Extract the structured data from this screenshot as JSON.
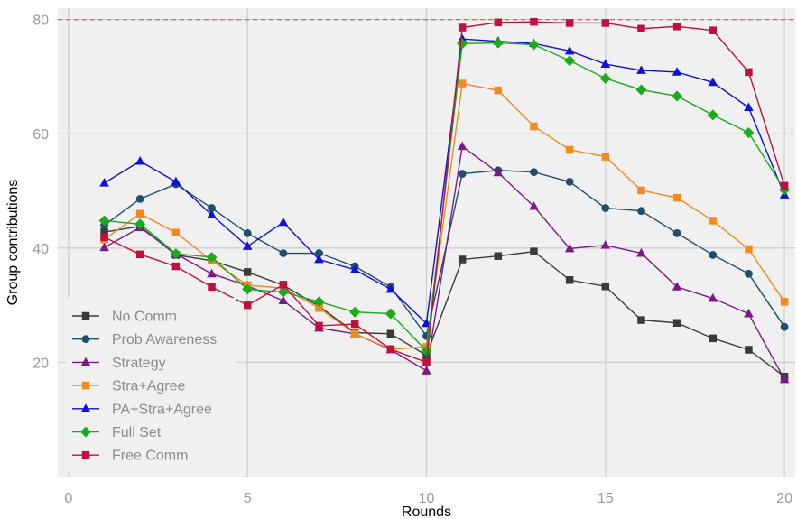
{
  "chart_data": {
    "type": "line",
    "title": "",
    "xlabel": "Rounds",
    "ylabel": "Group contributions",
    "xlim": [
      -0.3,
      20.3
    ],
    "ylim": [
      0,
      82
    ],
    "xticks": [
      0,
      5,
      10,
      15,
      20
    ],
    "yticks": [
      20,
      40,
      60,
      80
    ],
    "grid": true,
    "legend_position": "bottom-left",
    "reference_line": {
      "y": 80,
      "color": "#e8604c",
      "style": "dashed"
    },
    "x": [
      1,
      2,
      3,
      4,
      5,
      6,
      7,
      8,
      9,
      10,
      11,
      12,
      13,
      14,
      15,
      16,
      17,
      18,
      19,
      20
    ],
    "series": [
      {
        "name": "No Comm",
        "color": "#3a3a3a",
        "marker": "square",
        "values": [
          42.8,
          43.8,
          38.8,
          37.8,
          35.8,
          33.5,
          29.8,
          25.2,
          25.0,
          21.2,
          38.0,
          38.6,
          39.4,
          34.4,
          33.3,
          27.4,
          26.9,
          24.2,
          22.2,
          17.5
        ]
      },
      {
        "name": "Prob Awareness",
        "color": "#1f4e6e",
        "marker": "circle",
        "values": [
          44.0,
          48.6,
          51.2,
          47.0,
          42.6,
          39.1,
          39.1,
          36.8,
          33.2,
          24.6,
          53.0,
          53.6,
          53.3,
          51.6,
          47.0,
          46.5,
          42.6,
          38.8,
          35.5,
          26.2
        ]
      },
      {
        "name": "Strategy",
        "color": "#7b1a86",
        "marker": "triangle",
        "values": [
          40.1,
          43.6,
          39.0,
          35.5,
          33.4,
          30.8,
          26.0,
          25.0,
          22.2,
          18.5,
          57.8,
          53.2,
          47.3,
          39.9,
          40.5,
          39.1,
          33.2,
          31.2,
          28.5,
          17.0
        ]
      },
      {
        "name": "Stra+Agree",
        "color": "#f28a1f",
        "marker": "square",
        "values": [
          41.5,
          46.0,
          42.7,
          37.8,
          33.5,
          33.0,
          29.5,
          25.0,
          22.3,
          22.7,
          68.8,
          67.6,
          61.3,
          57.2,
          56.0,
          50.1,
          48.8,
          44.8,
          39.8,
          30.6
        ]
      },
      {
        "name": "PA+Stra+Agree",
        "color": "#1010d6",
        "marker": "triangle",
        "values": [
          51.4,
          55.2,
          51.6,
          45.8,
          40.3,
          44.5,
          38.0,
          36.2,
          32.8,
          26.8,
          76.6,
          76.2,
          75.8,
          74.5,
          72.2,
          71.1,
          70.8,
          69.0,
          64.6,
          49.3
        ]
      },
      {
        "name": "Full Set",
        "color": "#1aaa1a",
        "marker": "diamond",
        "values": [
          44.8,
          44.2,
          39.0,
          38.4,
          32.8,
          32.3,
          30.6,
          28.8,
          28.5,
          22.0,
          75.8,
          75.9,
          75.6,
          72.8,
          69.7,
          67.7,
          66.6,
          63.3,
          60.2,
          50.2
        ]
      },
      {
        "name": "Free Comm",
        "color": "#c0103f",
        "marker": "square",
        "values": [
          41.9,
          38.9,
          36.8,
          33.2,
          30.0,
          33.6,
          26.4,
          26.7,
          22.3,
          20.0,
          78.6,
          79.5,
          79.6,
          79.4,
          79.4,
          78.4,
          78.8,
          78.1,
          70.8,
          50.9
        ]
      }
    ]
  }
}
